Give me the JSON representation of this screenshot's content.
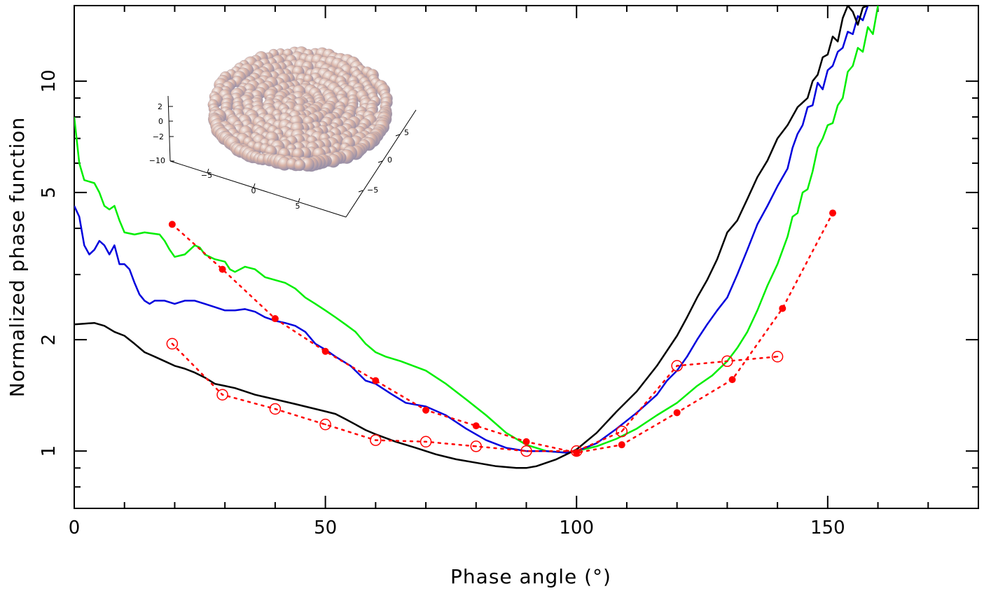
{
  "chart_data": {
    "type": "line",
    "xlabel": "Phase angle (°)",
    "ylabel": "Normalized phase function",
    "xlim": [
      0,
      180
    ],
    "ylim": [
      0.7,
      16
    ],
    "yscale": "log",
    "x_ticks": [
      0,
      50,
      100,
      150
    ],
    "y_ticks": [
      1,
      2,
      5,
      10
    ],
    "grid": false,
    "legend": "none",
    "series": [
      {
        "color": "#00ee00",
        "style": "solid",
        "points": [
          [
            0,
            8.0
          ],
          [
            1,
            6.0
          ],
          [
            2,
            5.4
          ],
          [
            4,
            5.3
          ],
          [
            5,
            5.0
          ],
          [
            6,
            4.6
          ],
          [
            7,
            4.5
          ],
          [
            8,
            4.6
          ],
          [
            9,
            4.2
          ],
          [
            10,
            3.9
          ],
          [
            12,
            3.85
          ],
          [
            14,
            3.9
          ],
          [
            17,
            3.85
          ],
          [
            18,
            3.7
          ],
          [
            19,
            3.5
          ],
          [
            20,
            3.35
          ],
          [
            22,
            3.4
          ],
          [
            24,
            3.6
          ],
          [
            25,
            3.55
          ],
          [
            26,
            3.4
          ],
          [
            28,
            3.3
          ],
          [
            30,
            3.25
          ],
          [
            31,
            3.1
          ],
          [
            32,
            3.05
          ],
          [
            34,
            3.15
          ],
          [
            36,
            3.1
          ],
          [
            38,
            2.95
          ],
          [
            40,
            2.9
          ],
          [
            42,
            2.85
          ],
          [
            44,
            2.75
          ],
          [
            46,
            2.6
          ],
          [
            48,
            2.5
          ],
          [
            50,
            2.4
          ],
          [
            52,
            2.3
          ],
          [
            54,
            2.2
          ],
          [
            56,
            2.1
          ],
          [
            58,
            1.95
          ],
          [
            60,
            1.85
          ],
          [
            62,
            1.8
          ],
          [
            65,
            1.75
          ],
          [
            70,
            1.65
          ],
          [
            74,
            1.52
          ],
          [
            78,
            1.38
          ],
          [
            82,
            1.25
          ],
          [
            86,
            1.12
          ],
          [
            90,
            1.04
          ],
          [
            94,
            1.0
          ],
          [
            98,
            0.99
          ],
          [
            100,
            1.0
          ],
          [
            104,
            1.03
          ],
          [
            108,
            1.08
          ],
          [
            112,
            1.15
          ],
          [
            116,
            1.25
          ],
          [
            120,
            1.35
          ],
          [
            124,
            1.5
          ],
          [
            127,
            1.6
          ],
          [
            130,
            1.75
          ],
          [
            132,
            1.9
          ],
          [
            134,
            2.1
          ],
          [
            136,
            2.4
          ],
          [
            138,
            2.8
          ],
          [
            140,
            3.2
          ],
          [
            142,
            3.8
          ],
          [
            143,
            4.3
          ],
          [
            144,
            4.4
          ],
          [
            145,
            5.0
          ],
          [
            146,
            5.1
          ],
          [
            147,
            5.7
          ],
          [
            148,
            6.6
          ],
          [
            149,
            7.0
          ],
          [
            150,
            7.6
          ],
          [
            151,
            7.7
          ],
          [
            152,
            8.6
          ],
          [
            153,
            9.0
          ],
          [
            154,
            10.6
          ],
          [
            155,
            11.0
          ],
          [
            156,
            12.3
          ],
          [
            157,
            12.0
          ],
          [
            158,
            14.0
          ],
          [
            159,
            13.4
          ],
          [
            160,
            16.0
          ]
        ]
      },
      {
        "color": "#0000dd",
        "style": "solid",
        "points": [
          [
            0,
            4.6
          ],
          [
            1,
            4.3
          ],
          [
            2,
            3.6
          ],
          [
            3,
            3.4
          ],
          [
            4,
            3.5
          ],
          [
            5,
            3.7
          ],
          [
            6,
            3.6
          ],
          [
            7,
            3.4
          ],
          [
            8,
            3.6
          ],
          [
            9,
            3.2
          ],
          [
            10,
            3.2
          ],
          [
            11,
            3.1
          ],
          [
            12,
            2.85
          ],
          [
            13,
            2.65
          ],
          [
            14,
            2.55
          ],
          [
            15,
            2.5
          ],
          [
            16,
            2.55
          ],
          [
            18,
            2.55
          ],
          [
            20,
            2.5
          ],
          [
            22,
            2.55
          ],
          [
            24,
            2.55
          ],
          [
            26,
            2.5
          ],
          [
            28,
            2.45
          ],
          [
            30,
            2.4
          ],
          [
            32,
            2.4
          ],
          [
            34,
            2.42
          ],
          [
            36,
            2.38
          ],
          [
            38,
            2.3
          ],
          [
            40,
            2.25
          ],
          [
            42,
            2.22
          ],
          [
            44,
            2.18
          ],
          [
            46,
            2.1
          ],
          [
            48,
            1.95
          ],
          [
            50,
            1.88
          ],
          [
            52,
            1.8
          ],
          [
            55,
            1.7
          ],
          [
            58,
            1.55
          ],
          [
            60,
            1.52
          ],
          [
            63,
            1.43
          ],
          [
            66,
            1.35
          ],
          [
            70,
            1.32
          ],
          [
            74,
            1.25
          ],
          [
            78,
            1.15
          ],
          [
            82,
            1.07
          ],
          [
            86,
            1.02
          ],
          [
            90,
            1.0
          ],
          [
            94,
            1.0
          ],
          [
            98,
            0.99
          ],
          [
            100,
            1.0
          ],
          [
            104,
            1.05
          ],
          [
            108,
            1.15
          ],
          [
            112,
            1.27
          ],
          [
            116,
            1.42
          ],
          [
            118,
            1.55
          ],
          [
            120,
            1.65
          ],
          [
            122,
            1.8
          ],
          [
            124,
            2.0
          ],
          [
            126,
            2.2
          ],
          [
            128,
            2.4
          ],
          [
            130,
            2.6
          ],
          [
            132,
            3.0
          ],
          [
            134,
            3.5
          ],
          [
            136,
            4.1
          ],
          [
            138,
            4.6
          ],
          [
            140,
            5.2
          ],
          [
            142,
            5.8
          ],
          [
            143,
            6.6
          ],
          [
            144,
            7.2
          ],
          [
            145,
            7.6
          ],
          [
            146,
            8.5
          ],
          [
            147,
            8.6
          ],
          [
            148,
            9.9
          ],
          [
            149,
            9.5
          ],
          [
            150,
            10.7
          ],
          [
            151,
            11.0
          ],
          [
            152,
            12.0
          ],
          [
            153,
            12.3
          ],
          [
            154,
            13.6
          ],
          [
            155,
            13.4
          ],
          [
            156,
            15.0
          ],
          [
            157,
            14.6
          ],
          [
            158,
            16.0
          ]
        ]
      },
      {
        "color": "#000000",
        "style": "solid",
        "points": [
          [
            0,
            2.2
          ],
          [
            2,
            2.21
          ],
          [
            4,
            2.22
          ],
          [
            6,
            2.18
          ],
          [
            8,
            2.1
          ],
          [
            10,
            2.05
          ],
          [
            12,
            1.95
          ],
          [
            14,
            1.85
          ],
          [
            16,
            1.8
          ],
          [
            18,
            1.75
          ],
          [
            20,
            1.7
          ],
          [
            22,
            1.67
          ],
          [
            24,
            1.63
          ],
          [
            26,
            1.58
          ],
          [
            28,
            1.52
          ],
          [
            30,
            1.5
          ],
          [
            32,
            1.48
          ],
          [
            34,
            1.45
          ],
          [
            36,
            1.42
          ],
          [
            38,
            1.4
          ],
          [
            40,
            1.38
          ],
          [
            42,
            1.36
          ],
          [
            44,
            1.34
          ],
          [
            46,
            1.32
          ],
          [
            48,
            1.3
          ],
          [
            50,
            1.28
          ],
          [
            52,
            1.26
          ],
          [
            54,
            1.22
          ],
          [
            56,
            1.18
          ],
          [
            58,
            1.14
          ],
          [
            60,
            1.11
          ],
          [
            64,
            1.06
          ],
          [
            68,
            1.02
          ],
          [
            72,
            0.98
          ],
          [
            76,
            0.95
          ],
          [
            80,
            0.93
          ],
          [
            84,
            0.91
          ],
          [
            88,
            0.9
          ],
          [
            90,
            0.9
          ],
          [
            92,
            0.91
          ],
          [
            96,
            0.95
          ],
          [
            100,
            1.01
          ],
          [
            104,
            1.12
          ],
          [
            108,
            1.28
          ],
          [
            112,
            1.45
          ],
          [
            116,
            1.7
          ],
          [
            120,
            2.05
          ],
          [
            122,
            2.3
          ],
          [
            124,
            2.6
          ],
          [
            126,
            2.9
          ],
          [
            128,
            3.3
          ],
          [
            130,
            3.9
          ],
          [
            132,
            4.2
          ],
          [
            134,
            4.8
          ],
          [
            136,
            5.5
          ],
          [
            138,
            6.1
          ],
          [
            140,
            7.0
          ],
          [
            142,
            7.6
          ],
          [
            144,
            8.5
          ],
          [
            146,
            9.0
          ],
          [
            147,
            10.0
          ],
          [
            148,
            10.4
          ],
          [
            149,
            11.6
          ],
          [
            150,
            11.8
          ],
          [
            151,
            13.2
          ],
          [
            152,
            12.8
          ],
          [
            153,
            14.8
          ],
          [
            154,
            16.0
          ],
          [
            155,
            15.4
          ],
          [
            156,
            14.2
          ],
          [
            157,
            15.8
          ],
          [
            158,
            16.0
          ]
        ]
      },
      {
        "color": "#ff0000",
        "style": "dotted",
        "marker": "filled-circle",
        "points": [
          [
            19.5,
            4.1
          ],
          [
            29.5,
            3.1
          ],
          [
            40,
            2.28
          ],
          [
            50,
            1.86
          ],
          [
            60,
            1.55
          ],
          [
            70,
            1.29
          ],
          [
            80,
            1.17
          ],
          [
            90,
            1.06
          ],
          [
            100,
            0.99
          ],
          [
            109,
            1.04
          ],
          [
            120,
            1.27
          ],
          [
            131,
            1.56
          ],
          [
            141,
            2.43
          ],
          [
            151,
            4.4
          ]
        ]
      },
      {
        "color": "#ff0000",
        "style": "dotted",
        "marker": "open-circle",
        "points": [
          [
            19.5,
            1.95
          ],
          [
            29.5,
            1.42
          ],
          [
            40,
            1.3
          ],
          [
            50,
            1.18
          ],
          [
            60,
            1.07
          ],
          [
            70,
            1.06
          ],
          [
            80,
            1.03
          ],
          [
            90,
            1.0
          ],
          [
            100,
            1.0
          ],
          [
            109,
            1.13
          ],
          [
            120,
            1.7
          ],
          [
            130,
            1.75
          ],
          [
            140,
            1.8
          ]
        ]
      }
    ],
    "inset": {
      "type": "3d-scatter",
      "description_axes": {
        "z_ticks": [
          "2",
          "0",
          "−2",
          "−10"
        ],
        "x_ticks": [
          "−5",
          "0",
          "5"
        ],
        "y_ticks": [
          "5",
          "0",
          "−5"
        ]
      }
    }
  }
}
